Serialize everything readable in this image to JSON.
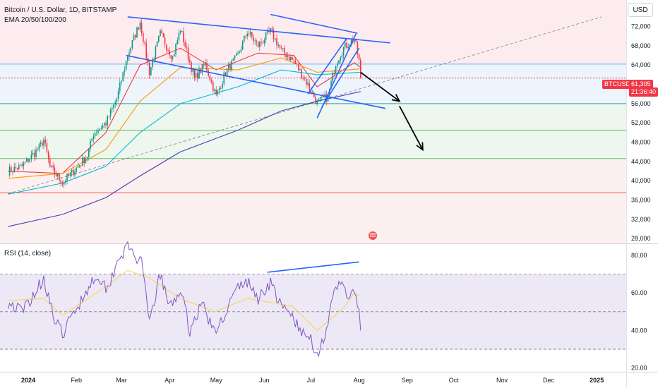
{
  "header": {
    "symbol_title": "Bitcoin / U.S. Dollar, 1D, BITSTAMP",
    "indicator": "EMA 20/50/100/200",
    "currency": "USD"
  },
  "price_tag": {
    "symbol": "BTCUSD",
    "price": "61,305",
    "countdown": "21:36:40"
  },
  "colors": {
    "up": "#089981",
    "down": "#f23645",
    "trendline": "#2962ff",
    "ema20": "#f23645",
    "ema50": "#ff9800",
    "ema100": "#00bcd4",
    "ema200": "#3f3fb5",
    "rsi": "#7e57c2",
    "rsi_ma": "#f7d44a"
  },
  "x_axis_labels": [
    "2024",
    "Feb",
    "Mar",
    "Apr",
    "May",
    "Jun",
    "Jul",
    "Aug",
    "Sep",
    "Oct",
    "Nov",
    "Dec",
    "2025"
  ],
  "chart_data": [
    {
      "type": "candlestick",
      "title": "Bitcoin / U.S. Dollar, 1D, BITSTAMP",
      "y_ticks": [
        "72,000",
        "68,000",
        "64,000",
        "60,000",
        "56,000",
        "52,000",
        "48,000",
        "44,000",
        "40,000",
        "36,000",
        "32,000",
        "28,000"
      ],
      "ylim": [
        27000,
        77500
      ],
      "close_path": [
        [
          "2023-12-19",
          42000
        ],
        [
          "2023-12-28",
          43000
        ],
        [
          "2024-01-08",
          46800
        ],
        [
          "2024-01-11",
          48500
        ],
        [
          "2024-01-15",
          42800
        ],
        [
          "2024-01-23",
          39600
        ],
        [
          "2024-02-01",
          42600
        ],
        [
          "2024-02-08",
          45200
        ],
        [
          "2024-02-12",
          49800
        ],
        [
          "2024-02-20",
          52000
        ],
        [
          "2024-02-27",
          57000
        ],
        [
          "2024-03-05",
          66000
        ],
        [
          "2024-03-13",
          73000
        ],
        [
          "2024-03-19",
          62500
        ],
        [
          "2024-03-26",
          70500
        ],
        [
          "2024-04-03",
          65600
        ],
        [
          "2024-04-08",
          71500
        ],
        [
          "2024-04-17",
          61200
        ],
        [
          "2024-04-24",
          64200
        ],
        [
          "2024-05-01",
          57500
        ],
        [
          "2024-05-07",
          62500
        ],
        [
          "2024-05-15",
          66000
        ],
        [
          "2024-05-21",
          71000
        ],
        [
          "2024-05-28",
          68000
        ],
        [
          "2024-06-05",
          71000
        ],
        [
          "2024-06-12",
          67000
        ],
        [
          "2024-06-20",
          64800
        ],
        [
          "2024-06-28",
          60500
        ],
        [
          "2024-07-05",
          56200
        ],
        [
          "2024-07-12",
          57500
        ],
        [
          "2024-07-17",
          64500
        ],
        [
          "2024-07-22",
          67500
        ],
        [
          "2024-07-29",
          69500
        ],
        [
          "2024-08-01",
          64800
        ],
        [
          "2024-08-02",
          61305
        ]
      ],
      "ema_series": [
        {
          "name": "EMA 20",
          "points": [
            [
              "2023-12-19",
              42000
            ],
            [
              "2024-01-23",
              41500
            ],
            [
              "2024-02-20",
              50000
            ],
            [
              "2024-03-13",
              64000
            ],
            [
              "2024-04-08",
              67500
            ],
            [
              "2024-05-01",
              63000
            ],
            [
              "2024-05-28",
              66500
            ],
            [
              "2024-06-20",
              66000
            ],
            [
              "2024-07-05",
              59500
            ],
            [
              "2024-07-29",
              64500
            ],
            [
              "2024-08-02",
              63500
            ]
          ]
        },
        {
          "name": "EMA 50",
          "points": [
            [
              "2023-12-19",
              40500
            ],
            [
              "2024-01-23",
              41500
            ],
            [
              "2024-02-20",
              46500
            ],
            [
              "2024-03-13",
              56500
            ],
            [
              "2024-04-08",
              63500
            ],
            [
              "2024-05-15",
              63000
            ],
            [
              "2024-06-12",
              65500
            ],
            [
              "2024-07-05",
              62500
            ],
            [
              "2024-08-02",
              63200
            ]
          ]
        },
        {
          "name": "EMA 100",
          "points": [
            [
              "2023-12-19",
              37200
            ],
            [
              "2024-01-23",
              39500
            ],
            [
              "2024-02-20",
              43000
            ],
            [
              "2024-03-13",
              50000
            ],
            [
              "2024-04-08",
              56000
            ],
            [
              "2024-05-15",
              59500
            ],
            [
              "2024-06-12",
              63000
            ],
            [
              "2024-07-05",
              62000
            ],
            [
              "2024-08-02",
              62500
            ]
          ]
        },
        {
          "name": "EMA 200",
          "points": [
            [
              "2023-12-19",
              30500
            ],
            [
              "2024-01-23",
              33000
            ],
            [
              "2024-02-20",
              36500
            ],
            [
              "2024-03-13",
              41000
            ],
            [
              "2024-04-08",
              46000
            ],
            [
              "2024-05-15",
              50500
            ],
            [
              "2024-06-12",
              54500
            ],
            [
              "2024-07-05",
              56500
            ],
            [
              "2024-08-02",
              58500
            ]
          ]
        }
      ],
      "horizontal_levels": [
        {
          "value": 64200,
          "color": "#64b5f6"
        },
        {
          "value": 61305,
          "color": "#f23645",
          "dotted": true
        },
        {
          "value": 56000,
          "color": "#26a69a"
        },
        {
          "value": 50500,
          "color": "#66bb6a"
        },
        {
          "value": 44600,
          "color": "#66bb6a"
        },
        {
          "value": 37500,
          "color": "#ef5350"
        }
      ],
      "zones": [
        {
          "from": 64200,
          "to": 77500,
          "color": "#fdecef"
        },
        {
          "from": 56000,
          "to": 64200,
          "color": "#eef4fb"
        },
        {
          "from": 44600,
          "to": 56000,
          "color": "#edf7ee"
        },
        {
          "from": 27000,
          "to": 44600,
          "color": "#fdf0f1"
        }
      ],
      "trendlines": [
        [
          "2024-03-05",
          74000,
          "2024-08-21",
          68600
        ],
        [
          "2024-03-04",
          66000,
          "2024-08-18",
          55000
        ],
        [
          "2024-06-05",
          74500,
          "2024-07-31",
          70600
        ],
        [
          "2024-07-05",
          53000,
          "2024-07-30",
          70500
        ],
        [
          "2024-06-29",
          58000,
          "2024-07-24",
          69500
        ],
        [
          "2024-07-08",
          55300,
          "2024-08-01",
          67500
        ]
      ],
      "dashed_trendline": [
        "2023-12-19",
        37300,
        "2025-01-04",
        74000
      ],
      "projection_arrows": [
        [
          "2024-08-02",
          62500,
          "2024-08-27",
          56500
        ],
        [
          "2024-08-27",
          55500,
          "2024-09-11",
          46400
        ]
      ]
    },
    {
      "type": "line",
      "title": "RSI (14, close)",
      "y_ticks": [
        "80.00",
        "60.00",
        "40.00",
        "20.00"
      ],
      "ylim": [
        18,
        86
      ],
      "bands": [
        70,
        50,
        30
      ],
      "rsi_points": [
        [
          "2023-12-19",
          55
        ],
        [
          "2023-12-28",
          50
        ],
        [
          "2024-01-05",
          60
        ],
        [
          "2024-01-11",
          68
        ],
        [
          "2024-01-18",
          45
        ],
        [
          "2024-01-23",
          38
        ],
        [
          "2024-02-01",
          52
        ],
        [
          "2024-02-08",
          62
        ],
        [
          "2024-02-14",
          70
        ],
        [
          "2024-02-21",
          62
        ],
        [
          "2024-02-28",
          79
        ],
        [
          "2024-03-05",
          84
        ],
        [
          "2024-03-09",
          81
        ],
        [
          "2024-03-14",
          75
        ],
        [
          "2024-03-19",
          44
        ],
        [
          "2024-03-26",
          70
        ],
        [
          "2024-04-01",
          52
        ],
        [
          "2024-04-08",
          62
        ],
        [
          "2024-04-14",
          40
        ],
        [
          "2024-04-22",
          55
        ],
        [
          "2024-04-30",
          38
        ],
        [
          "2024-05-07",
          50
        ],
        [
          "2024-05-15",
          63
        ],
        [
          "2024-05-21",
          66
        ],
        [
          "2024-05-28",
          57
        ],
        [
          "2024-06-05",
          66
        ],
        [
          "2024-06-12",
          52
        ],
        [
          "2024-06-19",
          48
        ],
        [
          "2024-06-25",
          38
        ],
        [
          "2024-07-01",
          36
        ],
        [
          "2024-07-05",
          27
        ],
        [
          "2024-07-10",
          38
        ],
        [
          "2024-07-17",
          62
        ],
        [
          "2024-07-22",
          66
        ],
        [
          "2024-07-26",
          55
        ],
        [
          "2024-07-29",
          62
        ],
        [
          "2024-08-01",
          50
        ],
        [
          "2024-08-02",
          40
        ]
      ],
      "rsi_ma_points": [
        [
          "2023-12-19",
          56
        ],
        [
          "2024-01-11",
          57
        ],
        [
          "2024-01-23",
          48
        ],
        [
          "2024-02-14",
          60
        ],
        [
          "2024-03-05",
          72
        ],
        [
          "2024-03-19",
          68
        ],
        [
          "2024-04-08",
          57
        ],
        [
          "2024-04-30",
          50
        ],
        [
          "2024-05-21",
          57
        ],
        [
          "2024-06-19",
          53
        ],
        [
          "2024-07-05",
          40
        ],
        [
          "2024-07-22",
          52
        ],
        [
          "2024-07-29",
          60
        ],
        [
          "2024-08-02",
          58
        ]
      ],
      "divergence_line": [
        "2024-06-03",
        71,
        "2024-08-01",
        76.5
      ]
    }
  ]
}
